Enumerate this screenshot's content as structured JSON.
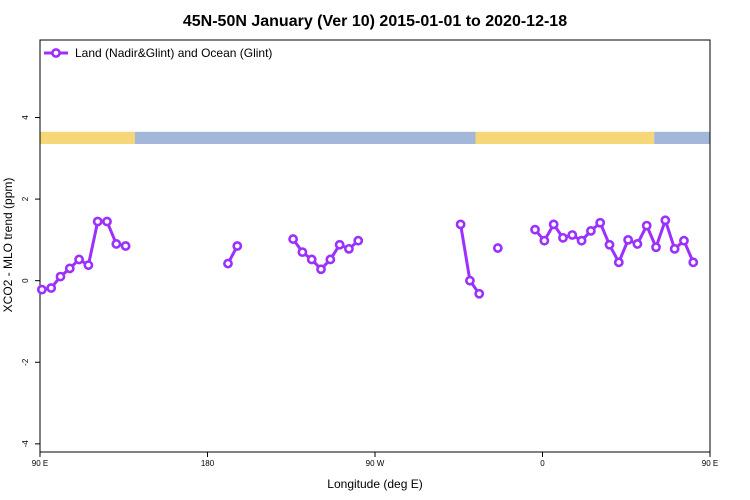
{
  "chart_data": {
    "type": "line",
    "title": "45N-50N January (Ver 10)   2015-01-01 to 2020-12-18",
    "xlabel": "Longitude (deg E)",
    "ylabel": "XCO2 - MLO trend (ppm)",
    "xlim": [
      90,
      450
    ],
    "ylim": [
      -4.2,
      5.9
    ],
    "x_ticks": [
      {
        "value": 90,
        "label": "90 E"
      },
      {
        "value": 180,
        "label": "180"
      },
      {
        "value": 270,
        "label": "90 W"
      },
      {
        "value": 360,
        "label": "0"
      },
      {
        "value": 450,
        "label": "90 E"
      }
    ],
    "y_ticks": [
      {
        "value": -4,
        "label": "-4"
      },
      {
        "value": -2,
        "label": "-2"
      },
      {
        "value": 0,
        "label": "0"
      },
      {
        "value": 2,
        "label": "2"
      },
      {
        "value": 4,
        "label": "4"
      }
    ],
    "legend_position": "top-left",
    "colors": {
      "series": "#9b30ff",
      "land": "#f5d77a",
      "ocean": "#a3b8d9"
    },
    "map_strip": {
      "y_range": [
        3.35,
        3.65
      ],
      "segments": [
        {
          "from": 90,
          "to": 141,
          "kind": "land"
        },
        {
          "from": 141,
          "to": 324,
          "kind": "ocean"
        },
        {
          "from": 324,
          "to": 420,
          "kind": "land"
        },
        {
          "from": 420,
          "to": 450,
          "kind": "ocean"
        }
      ]
    },
    "series": [
      {
        "name": "Land (Nadir&Glint) and Ocean (Glint)",
        "segments": [
          [
            {
              "x": 91,
              "y": -0.22
            },
            {
              "x": 96,
              "y": -0.18
            },
            {
              "x": 101,
              "y": 0.1
            },
            {
              "x": 106,
              "y": 0.3
            },
            {
              "x": 111,
              "y": 0.52
            },
            {
              "x": 116,
              "y": 0.38
            },
            {
              "x": 121,
              "y": 1.45
            },
            {
              "x": 126,
              "y": 1.45
            },
            {
              "x": 131,
              "y": 0.9
            },
            {
              "x": 136,
              "y": 0.85
            }
          ],
          [
            {
              "x": 191,
              "y": 0.42
            },
            {
              "x": 196,
              "y": 0.85
            }
          ],
          [
            {
              "x": 226,
              "y": 1.02
            },
            {
              "x": 231,
              "y": 0.7
            },
            {
              "x": 236,
              "y": 0.52
            },
            {
              "x": 241,
              "y": 0.28
            },
            {
              "x": 246,
              "y": 0.52
            },
            {
              "x": 251,
              "y": 0.88
            },
            {
              "x": 256,
              "y": 0.78
            },
            {
              "x": 261,
              "y": 0.98
            }
          ],
          [
            {
              "x": 316,
              "y": 1.38
            },
            {
              "x": 321,
              "y": 0.0
            },
            {
              "x": 326,
              "y": -0.32
            }
          ],
          [
            {
              "x": 336,
              "y": 0.8
            }
          ],
          [
            {
              "x": 356,
              "y": 1.25
            },
            {
              "x": 361,
              "y": 0.98
            },
            {
              "x": 366,
              "y": 1.38
            },
            {
              "x": 371,
              "y": 1.05
            },
            {
              "x": 376,
              "y": 1.12
            },
            {
              "x": 381,
              "y": 0.98
            },
            {
              "x": 386,
              "y": 1.22
            },
            {
              "x": 391,
              "y": 1.42
            },
            {
              "x": 396,
              "y": 0.88
            },
            {
              "x": 401,
              "y": 0.45
            },
            {
              "x": 406,
              "y": 1.0
            },
            {
              "x": 411,
              "y": 0.9
            },
            {
              "x": 416,
              "y": 1.35
            },
            {
              "x": 421,
              "y": 0.82
            },
            {
              "x": 426,
              "y": 1.48
            },
            {
              "x": 431,
              "y": 0.78
            },
            {
              "x": 436,
              "y": 0.98
            },
            {
              "x": 441,
              "y": 0.45
            }
          ],
          [
            {
              "x": 91,
              "y": 0.45
            },
            {
              "x": 96,
              "y": -0.22
            },
            {
              "x": 101,
              "y": -0.18
            },
            {
              "x": 106,
              "y": 0.1
            },
            {
              "x": 111,
              "y": 0.3
            },
            {
              "x": 116,
              "y": 0.52
            },
            {
              "x": 121,
              "y": 0.38
            },
            {
              "x": 126,
              "y": 1.45
            },
            {
              "x": 131,
              "y": 1.45
            },
            {
              "x": 136,
              "y": 0.9
            },
            {
              "x": 141,
              "y": 0.85
            }
          ]
        ]
      }
    ]
  }
}
